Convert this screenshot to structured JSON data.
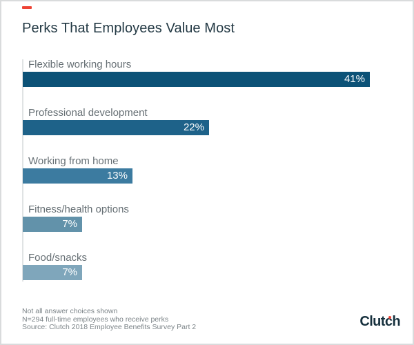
{
  "accent_color": "#ee4335",
  "card": {
    "background": "#ffffff",
    "border_color": "#d9dbdc"
  },
  "chart_data": {
    "type": "bar",
    "orientation": "horizontal",
    "title": "Perks That Employees Value Most",
    "categories": [
      "Flexible working hours",
      "Professional development",
      "Working from home",
      "Fitness/health options",
      "Food/snacks"
    ],
    "values": [
      41,
      22,
      13,
      7,
      7
    ],
    "value_labels": [
      "41%",
      "22%",
      "13%",
      "7%",
      "7%"
    ],
    "value_suffix": "%",
    "xlim": [
      0,
      44
    ],
    "grid": false,
    "legend": false,
    "bar_colors": [
      "#0c5277",
      "#1e6289",
      "#3c7ba0",
      "#6292aa",
      "#7fa6bb"
    ],
    "value_label_color": "#ffffff",
    "category_label_color": "#666f74",
    "axis_line_color": "#e0e3e4"
  },
  "footer": {
    "notes": [
      "Not all answer choices shown",
      "N=294 full-time employees who receive perks",
      "Source: Clutch 2018 Employee Benefits Survey Part 2"
    ],
    "logo_text": "Clutch"
  }
}
